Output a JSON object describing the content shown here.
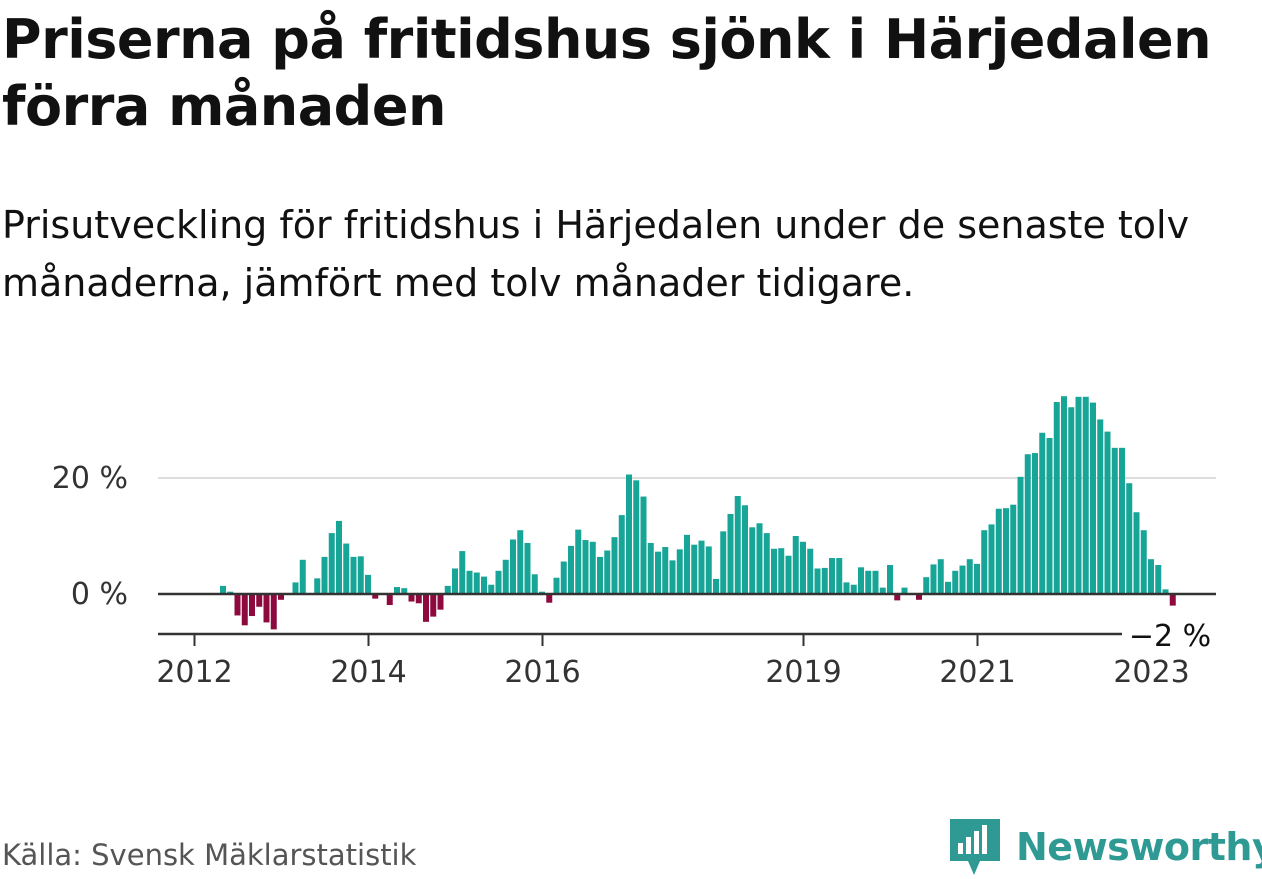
{
  "header": {
    "title": "Priserna på fritidshus sjönk i Härjedalen förra månaden",
    "subtitle": "Prisutveckling för fritidshus i Härjedalen under de senaste tolv månaderna, jämfört med tolv månader tidigare."
  },
  "footer": {
    "source": "Källa: Svensk Mäklarstatistik",
    "brand": "Newsworthy"
  },
  "colors": {
    "positive": "#17a597",
    "negative": "#8e0a3e",
    "brand": "#2f9a94",
    "gridline": "#dddddd",
    "zeroline": "#333333"
  },
  "chart_data": {
    "type": "bar",
    "x_start": "2012-01",
    "x_end": "2023-01",
    "x_frequency": "monthly",
    "ylabel": "",
    "ylim": [
      -7,
      36
    ],
    "y_ticks": [
      0,
      20
    ],
    "y_tick_labels": [
      "0 %",
      "20 %"
    ],
    "x_tick_labels": [
      "2012",
      "2014",
      "2016",
      "2019",
      "2021",
      "2023"
    ],
    "grid": "horizontal",
    "annotations": [
      {
        "x": "2023-01",
        "text": "−2 %"
      }
    ],
    "values": [
      0,
      0,
      1.4,
      0.4,
      -3.7,
      -5.4,
      -3.8,
      -2.2,
      -4.9,
      -6.1,
      -1.0,
      0,
      2.0,
      5.9,
      0,
      2.7,
      6.4,
      10.5,
      12.6,
      8.7,
      6.4,
      6.5,
      3.3,
      -0.8,
      0,
      -1.9,
      1.2,
      1.0,
      -1.3,
      -1.6,
      -4.8,
      -3.9,
      -2.7,
      1.4,
      4.4,
      7.4,
      4.0,
      3.7,
      3.0,
      1.6,
      4.0,
      5.9,
      9.4,
      11.0,
      8.8,
      3.4,
      0.4,
      -1.5,
      2.8,
      5.6,
      8.3,
      11.1,
      9.3,
      9.0,
      6.4,
      7.5,
      9.8,
      13.6,
      20.6,
      19.6,
      16.8,
      8.8,
      7.3,
      8.1,
      5.8,
      7.7,
      10.2,
      8.5,
      9.2,
      8.2,
      2.6,
      10.8,
      13.8,
      16.9,
      15.3,
      11.5,
      12.2,
      10.5,
      7.8,
      7.9,
      6.6,
      10.0,
      9.0,
      7.8,
      4.4,
      4.5,
      6.2,
      6.2,
      2.0,
      1.6,
      4.6,
      4.0,
      4.0,
      1.1,
      5.0,
      -1.1,
      1.1,
      0,
      -1.0,
      2.9,
      5.1,
      6.0,
      2.1,
      4.0,
      4.9,
      6.0,
      5.2,
      11.0,
      12.0,
      14.7,
      14.8,
      15.4,
      20.2,
      24.1,
      24.3,
      27.8,
      26.9,
      33.1,
      34.1,
      32.2,
      34.0,
      34.0,
      33.0,
      30.1,
      28.0,
      25.2,
      25.2,
      19.1,
      14.1,
      11.0,
      6.0,
      5.0,
      0.8,
      -2.0
    ]
  }
}
